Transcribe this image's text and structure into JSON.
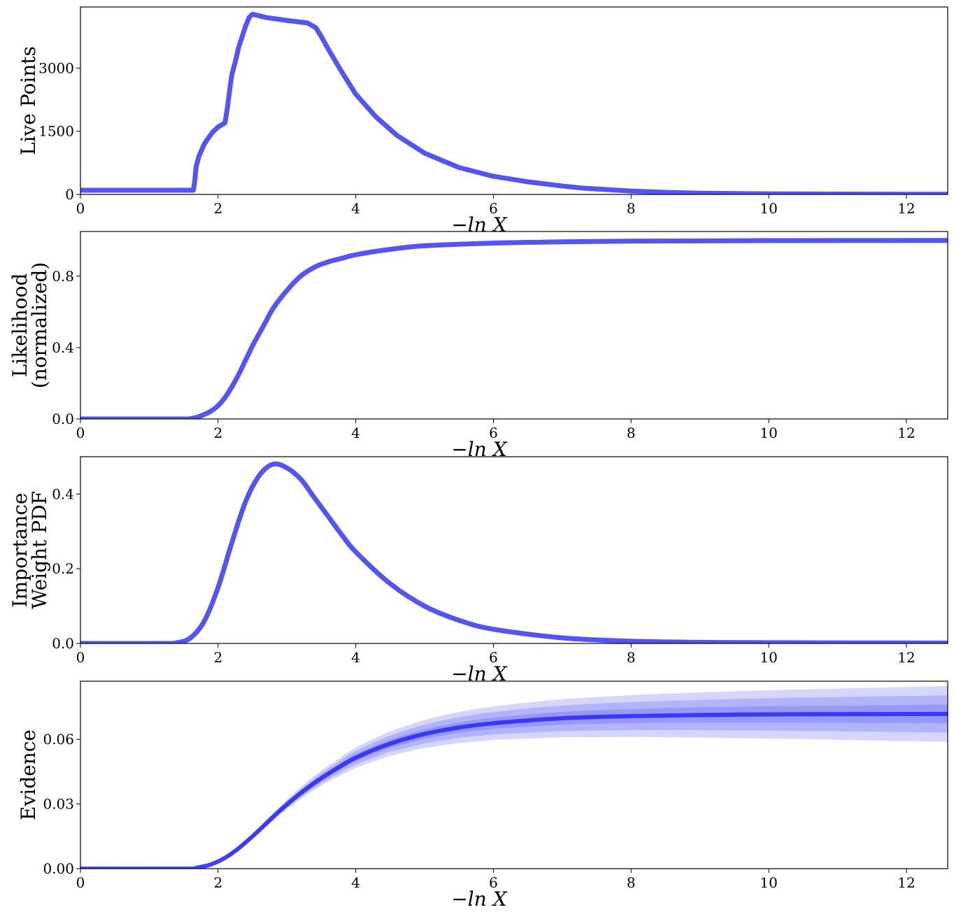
{
  "chart_data": [
    {
      "type": "line",
      "ylabel_lines": [
        "Live Points"
      ],
      "xlabel": "−ln X",
      "xlim": [
        0,
        12.6
      ],
      "ylim": [
        0,
        4450
      ],
      "xticks": [
        0,
        2,
        4,
        6,
        8,
        10,
        12
      ],
      "yticks": [
        0,
        1500,
        3000
      ],
      "ytick_labels": [
        "0",
        "1500",
        "3000"
      ],
      "color": "#4b4bf2",
      "series": [
        {
          "x": [
            0,
            1.64,
            1.66,
            1.68,
            1.72,
            1.8,
            1.85,
            1.92,
            2.0,
            2.05,
            2.1,
            2.13,
            2.17,
            2.2,
            2.25,
            2.3,
            2.35,
            2.4,
            2.45,
            2.5,
            2.7,
            3.0,
            3.3,
            3.42,
            3.5,
            3.6,
            3.8,
            4.0,
            4.3,
            4.6,
            5.0,
            5.5,
            6.0,
            6.5,
            7.0,
            7.3,
            8.0,
            8.5,
            9.0,
            10.0,
            11.0,
            12.6
          ],
          "y": [
            100,
            100,
            300,
            650,
            900,
            1200,
            1320,
            1480,
            1600,
            1650,
            1700,
            2000,
            2500,
            2850,
            3150,
            3500,
            3750,
            4000,
            4200,
            4280,
            4200,
            4130,
            4070,
            3960,
            3750,
            3450,
            2900,
            2380,
            1830,
            1400,
            980,
            640,
            430,
            300,
            200,
            150,
            80,
            50,
            30,
            15,
            8,
            5
          ]
        }
      ]
    },
    {
      "type": "line",
      "ylabel_lines": [
        "Likelihood",
        "(normalized)"
      ],
      "xlabel": "−ln X",
      "xlim": [
        0,
        12.6
      ],
      "ylim": [
        0,
        1.05
      ],
      "xticks": [
        0,
        2,
        4,
        6,
        8,
        10,
        12
      ],
      "yticks": [
        0.0,
        0.4,
        0.8
      ],
      "ytick_labels": [
        "0.0",
        "0.4",
        "0.8"
      ],
      "color": "#4b4bf2",
      "series": [
        {
          "x": [
            0,
            1.5,
            1.6,
            1.7,
            1.8,
            1.9,
            2.0,
            2.1,
            2.2,
            2.3,
            2.4,
            2.5,
            2.6,
            2.7,
            2.8,
            3.0,
            3.2,
            3.4,
            3.6,
            3.8,
            4.0,
            4.5,
            5.0,
            6.0,
            7.0,
            8.0,
            10.0,
            12.6
          ],
          "y": [
            0,
            0,
            0.002,
            0.01,
            0.025,
            0.045,
            0.075,
            0.12,
            0.18,
            0.25,
            0.33,
            0.41,
            0.48,
            0.55,
            0.62,
            0.72,
            0.8,
            0.85,
            0.88,
            0.9,
            0.92,
            0.95,
            0.97,
            0.985,
            0.992,
            0.996,
            0.999,
            1.0
          ]
        }
      ]
    },
    {
      "type": "line",
      "ylabel_lines": [
        "Importance",
        "Weight PDF"
      ],
      "xlabel": "−ln X",
      "xlim": [
        0,
        12.6
      ],
      "ylim": [
        0,
        0.5
      ],
      "xticks": [
        0,
        2,
        4,
        6,
        8,
        10,
        12
      ],
      "yticks": [
        0.0,
        0.2,
        0.4
      ],
      "ytick_labels": [
        "0.0",
        "0.2",
        "0.4"
      ],
      "color": "#4b4bf2",
      "series": [
        {
          "x": [
            0,
            1.2,
            1.4,
            1.6,
            1.8,
            2.0,
            2.2,
            2.4,
            2.6,
            2.8,
            3.0,
            3.2,
            3.4,
            3.6,
            3.8,
            4.0,
            4.5,
            5.0,
            5.5,
            6.0,
            7.0,
            8.0,
            9.0,
            10.0,
            12.6
          ],
          "y": [
            0,
            0,
            0.002,
            0.015,
            0.06,
            0.15,
            0.27,
            0.38,
            0.45,
            0.48,
            0.47,
            0.44,
            0.39,
            0.34,
            0.29,
            0.245,
            0.16,
            0.1,
            0.062,
            0.038,
            0.015,
            0.006,
            0.003,
            0.002,
            0.001
          ]
        }
      ]
    },
    {
      "type": "area",
      "ylabel_lines": [
        "Evidence"
      ],
      "xlabel": "−ln X",
      "xlim": [
        0,
        12.6
      ],
      "ylim": [
        0,
        0.087
      ],
      "xticks": [
        0,
        2,
        4,
        6,
        8,
        10,
        12
      ],
      "yticks": [
        0.0,
        0.03,
        0.06
      ],
      "ytick_labels": [
        "0.00",
        "0.03",
        "0.06"
      ],
      "color": "#2e2ef5",
      "series": [
        {
          "name": "",
          "x": [
            0,
            1.5,
            1.7,
            1.9,
            2.1,
            2.3,
            2.5,
            2.7,
            2.9,
            3.1,
            3.3,
            3.5,
            3.7,
            4.0,
            4.5,
            5.0,
            5.5,
            6.0,
            7.0,
            8.0,
            9.0,
            10.0,
            11.0,
            12.6
          ],
          "y": [
            0,
            0,
            0.0005,
            0.002,
            0.005,
            0.0095,
            0.015,
            0.021,
            0.027,
            0.0325,
            0.0375,
            0.042,
            0.046,
            0.0515,
            0.058,
            0.0625,
            0.0655,
            0.0675,
            0.0698,
            0.0708,
            0.0713,
            0.0716,
            0.0717,
            0.0718
          ]
        }
      ],
      "bands_sigma_fraction_at_end": [
        0.06,
        0.12,
        0.18
      ]
    }
  ]
}
